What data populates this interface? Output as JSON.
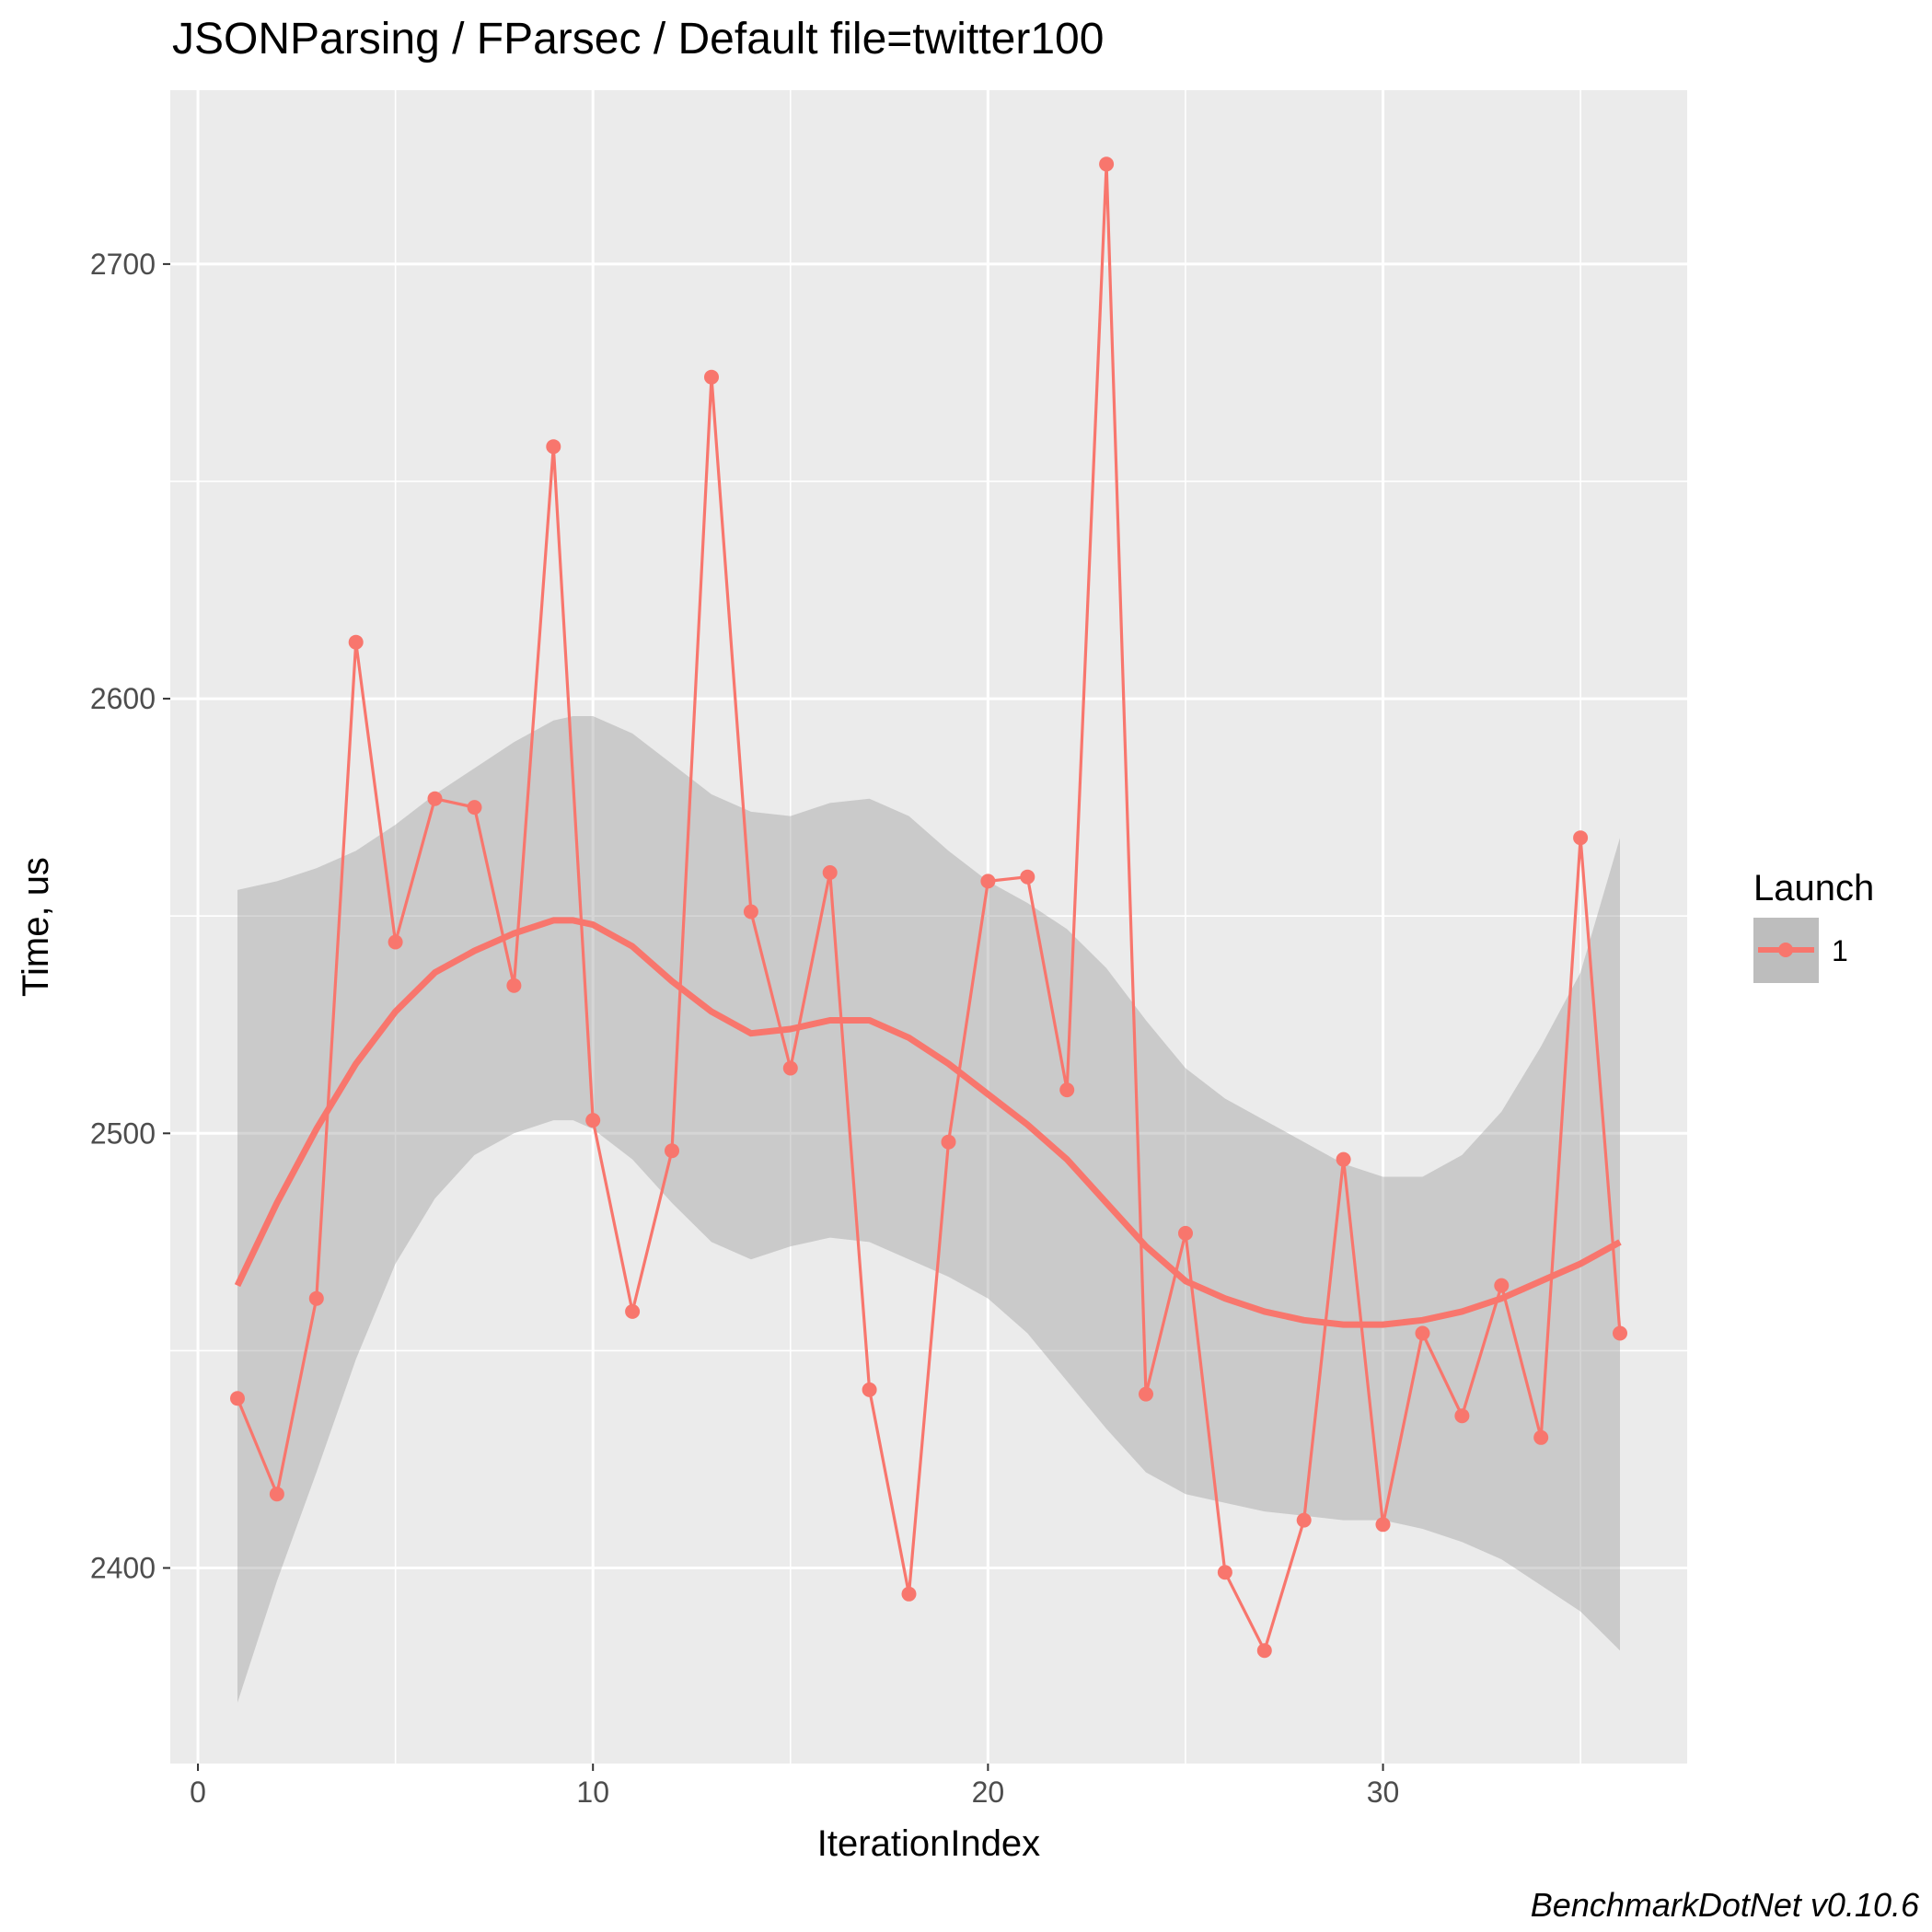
{
  "chart_data": {
    "type": "line",
    "title": "JSONParsing / FParsec / Default file=twitter100",
    "xlabel": "IterationIndex",
    "ylabel": "Time, us",
    "caption": "BenchmarkDotNet v0.10.6",
    "xlim": [
      -0.7,
      37.7
    ],
    "ylim": [
      2355,
      2740
    ],
    "x_ticks": [
      0,
      10,
      20,
      30
    ],
    "x_tick_labels": [
      "0",
      "10",
      "20",
      "30"
    ],
    "y_ticks": [
      2400,
      2500,
      2600,
      2700
    ],
    "y_tick_labels": [
      "2400",
      "2500",
      "2600",
      "2700"
    ],
    "grid": true,
    "legend": {
      "title": "Launch",
      "position": "right",
      "entries": [
        "1"
      ]
    },
    "colors": {
      "series": "#f8766d",
      "ribbon": "#bdbdbd",
      "panel": "#ebebeb",
      "grid": "#ffffff",
      "axis_text": "#4d4d4d"
    },
    "series": [
      {
        "name": "1",
        "x": [
          1,
          2,
          3,
          4,
          5,
          6,
          7,
          8,
          9,
          10,
          11,
          12,
          13,
          14,
          15,
          16,
          17,
          18,
          19,
          20,
          21,
          22,
          23,
          24,
          25,
          26,
          27,
          28,
          29,
          30,
          31,
          32,
          33,
          34,
          35,
          36
        ],
        "values": [
          2439,
          2417,
          2462,
          2613,
          2544,
          2577,
          2575,
          2534,
          2658,
          2503,
          2459,
          2496,
          2674,
          2551,
          2515,
          2560,
          2441,
          2394,
          2498,
          2558,
          2559,
          2510,
          2723,
          2440,
          2477,
          2399,
          2381,
          2411,
          2494,
          2410,
          2454,
          2435,
          2465,
          2430,
          2568,
          2454
        ]
      }
    ],
    "smooth": {
      "method": "loess",
      "x": [
        1,
        2,
        3,
        4,
        5,
        6,
        7,
        8,
        9,
        9.5,
        10,
        11,
        12,
        13,
        14,
        15,
        16,
        17,
        18,
        19,
        20,
        21,
        22,
        23,
        24,
        25,
        26,
        27,
        28,
        29,
        30,
        31,
        32,
        33,
        34,
        35,
        36
      ],
      "fit": [
        2465,
        2484,
        2501,
        2516,
        2528,
        2537,
        2542,
        2546,
        2549,
        2549,
        2548,
        2543,
        2535,
        2528,
        2523,
        2524,
        2526,
        2526,
        2522,
        2516,
        2509,
        2502,
        2494,
        2484,
        2474,
        2466,
        2462,
        2459,
        2457,
        2456,
        2456,
        2457,
        2459,
        2462,
        2466,
        2470,
        2475
      ],
      "upper": [
        2556,
        2558,
        2561,
        2565,
        2571,
        2578,
        2584,
        2590,
        2595,
        2596,
        2596,
        2592,
        2585,
        2578,
        2574,
        2573,
        2576,
        2577,
        2573,
        2565,
        2558,
        2553,
        2547,
        2538,
        2526,
        2515,
        2508,
        2503,
        2498,
        2493,
        2490,
        2490,
        2495,
        2505,
        2520,
        2537,
        2568
      ],
      "lower": [
        2369,
        2397,
        2422,
        2448,
        2470,
        2485,
        2495,
        2500,
        2503,
        2503,
        2501,
        2494,
        2484,
        2475,
        2471,
        2474,
        2476,
        2475,
        2471,
        2467,
        2462,
        2454,
        2443,
        2432,
        2422,
        2417,
        2415,
        2413,
        2412,
        2411,
        2411,
        2409,
        2406,
        2402,
        2396,
        2390,
        2381
      ]
    }
  }
}
